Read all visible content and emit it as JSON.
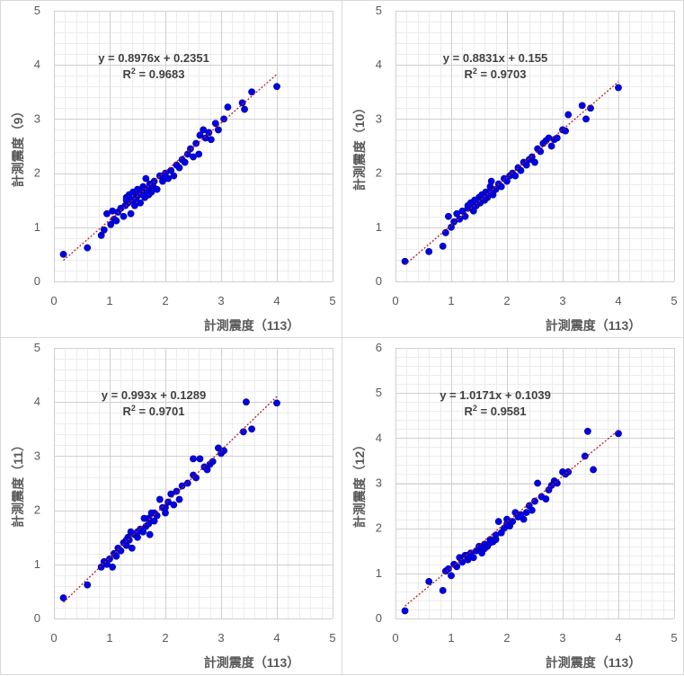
{
  "chart_data": [
    {
      "type": "scatter",
      "xlabel": "計測震度（113）",
      "ylabel": "計測震度（9）",
      "xlim": [
        0,
        5
      ],
      "ylim": [
        0,
        5
      ],
      "xticks": [
        "0",
        "1",
        "2",
        "3",
        "4",
        "5"
      ],
      "yticks": [
        "0",
        "1",
        "2",
        "3",
        "4",
        "5"
      ],
      "equation": "y = 0.8976x + 0.2351",
      "r2_prefix": "R",
      "r2_sup": "2",
      "r2_value": " = 0.9683",
      "trendline": {
        "slope": 0.8976,
        "intercept": 0.2351,
        "x_range": [
          0.17,
          4.0
        ]
      },
      "points": [
        [
          0.17,
          0.5
        ],
        [
          0.6,
          0.62
        ],
        [
          0.85,
          0.85
        ],
        [
          0.9,
          0.95
        ],
        [
          0.95,
          1.25
        ],
        [
          1.02,
          1.05
        ],
        [
          1.05,
          1.3
        ],
        [
          1.08,
          1.15
        ],
        [
          1.12,
          1.12
        ],
        [
          1.15,
          1.28
        ],
        [
          1.2,
          1.35
        ],
        [
          1.25,
          1.2
        ],
        [
          1.28,
          1.4
        ],
        [
          1.3,
          1.55
        ],
        [
          1.33,
          1.45
        ],
        [
          1.35,
          1.6
        ],
        [
          1.38,
          1.25
        ],
        [
          1.4,
          1.5
        ],
        [
          1.42,
          1.65
        ],
        [
          1.45,
          1.4
        ],
        [
          1.48,
          1.55
        ],
        [
          1.5,
          1.7
        ],
        [
          1.52,
          1.6
        ],
        [
          1.55,
          1.45
        ],
        [
          1.58,
          1.65
        ],
        [
          1.6,
          1.75
        ],
        [
          1.63,
          1.55
        ],
        [
          1.65,
          1.9
        ],
        [
          1.68,
          1.7
        ],
        [
          1.7,
          1.6
        ],
        [
          1.72,
          1.8
        ],
        [
          1.75,
          1.65
        ],
        [
          1.78,
          1.75
        ],
        [
          1.8,
          1.85
        ],
        [
          1.85,
          1.7
        ],
        [
          1.9,
          1.95
        ],
        [
          1.95,
          1.85
        ],
        [
          2.0,
          2.0
        ],
        [
          2.05,
          1.9
        ],
        [
          2.1,
          2.05
        ],
        [
          2.15,
          1.95
        ],
        [
          2.2,
          2.15
        ],
        [
          2.25,
          2.1
        ],
        [
          2.3,
          2.25
        ],
        [
          2.35,
          2.2
        ],
        [
          2.4,
          2.35
        ],
        [
          2.45,
          2.45
        ],
        [
          2.5,
          2.3
        ],
        [
          2.55,
          2.55
        ],
        [
          2.6,
          2.35
        ],
        [
          2.62,
          2.7
        ],
        [
          2.68,
          2.8
        ],
        [
          2.72,
          2.65
        ],
        [
          2.78,
          2.75
        ],
        [
          2.82,
          2.62
        ],
        [
          2.9,
          2.92
        ],
        [
          2.95,
          2.8
        ],
        [
          3.05,
          3.0
        ],
        [
          3.12,
          3.22
        ],
        [
          3.38,
          3.3
        ],
        [
          3.42,
          3.18
        ],
        [
          3.55,
          3.5
        ],
        [
          4.0,
          3.6
        ],
        [
          1.3,
          1.5
        ],
        [
          1.6,
          1.6
        ],
        [
          2.0,
          1.95
        ],
        [
          1.45,
          1.52
        ],
        [
          1.75,
          1.78
        ]
      ]
    },
    {
      "type": "scatter",
      "xlabel": "計測震度（113）",
      "ylabel": "計測震度（10）",
      "xlim": [
        0,
        5
      ],
      "ylim": [
        0,
        5
      ],
      "xticks": [
        "0",
        "1",
        "2",
        "3",
        "4",
        "5"
      ],
      "yticks": [
        "0",
        "1",
        "2",
        "3",
        "4",
        "5"
      ],
      "equation": "y = 0.8831x + 0.155",
      "r2_prefix": "R",
      "r2_sup": "2",
      "r2_value": " = 0.9703",
      "trendline": {
        "slope": 0.8831,
        "intercept": 0.155,
        "x_range": [
          0.17,
          4.0
        ]
      },
      "points": [
        [
          0.17,
          0.37
        ],
        [
          0.6,
          0.55
        ],
        [
          0.85,
          0.65
        ],
        [
          0.9,
          0.9
        ],
        [
          0.95,
          1.2
        ],
        [
          1.0,
          1.0
        ],
        [
          1.05,
          1.1
        ],
        [
          1.1,
          1.25
        ],
        [
          1.15,
          1.15
        ],
        [
          1.2,
          1.3
        ],
        [
          1.25,
          1.2
        ],
        [
          1.3,
          1.35
        ],
        [
          1.35,
          1.45
        ],
        [
          1.4,
          1.3
        ],
        [
          1.42,
          1.5
        ],
        [
          1.45,
          1.4
        ],
        [
          1.5,
          1.55
        ],
        [
          1.52,
          1.45
        ],
        [
          1.55,
          1.6
        ],
        [
          1.6,
          1.5
        ],
        [
          1.62,
          1.65
        ],
        [
          1.65,
          1.55
        ],
        [
          1.7,
          1.75
        ],
        [
          1.72,
          1.85
        ],
        [
          1.75,
          1.6
        ],
        [
          1.8,
          1.7
        ],
        [
          1.85,
          1.8
        ],
        [
          1.9,
          1.75
        ],
        [
          1.95,
          1.9
        ],
        [
          2.0,
          1.85
        ],
        [
          2.05,
          1.95
        ],
        [
          2.1,
          2.0
        ],
        [
          2.15,
          1.95
        ],
        [
          2.2,
          2.1
        ],
        [
          2.25,
          2.05
        ],
        [
          2.3,
          2.2
        ],
        [
          2.35,
          2.15
        ],
        [
          2.4,
          2.25
        ],
        [
          2.45,
          2.3
        ],
        [
          2.5,
          2.2
        ],
        [
          2.55,
          2.45
        ],
        [
          2.6,
          2.4
        ],
        [
          2.65,
          2.55
        ],
        [
          2.7,
          2.6
        ],
        [
          2.75,
          2.65
        ],
        [
          2.8,
          2.5
        ],
        [
          2.85,
          2.62
        ],
        [
          2.9,
          2.65
        ],
        [
          3.0,
          2.8
        ],
        [
          3.05,
          2.78
        ],
        [
          3.1,
          3.08
        ],
        [
          3.35,
          3.25
        ],
        [
          3.42,
          3.0
        ],
        [
          3.5,
          3.2
        ],
        [
          4.0,
          3.58
        ],
        [
          1.3,
          1.4
        ],
        [
          1.6,
          1.55
        ],
        [
          1.5,
          1.48
        ],
        [
          1.4,
          1.35
        ],
        [
          1.7,
          1.65
        ]
      ]
    },
    {
      "type": "scatter",
      "xlabel": "計測震度（113）",
      "ylabel": "計測震度（11）",
      "xlim": [
        0,
        5
      ],
      "ylim": [
        0,
        5
      ],
      "xticks": [
        "0",
        "1",
        "2",
        "3",
        "4",
        "5"
      ],
      "yticks": [
        "0",
        "1",
        "2",
        "3",
        "4",
        "5"
      ],
      "equation": "y = 0.993x + 0.1289",
      "r2_prefix": "R",
      "r2_sup": "2",
      "r2_value": " = 0.9701",
      "trendline": {
        "slope": 0.993,
        "intercept": 0.1289,
        "x_range": [
          0.17,
          4.0
        ]
      },
      "points": [
        [
          0.17,
          0.38
        ],
        [
          0.6,
          0.62
        ],
        [
          0.85,
          0.95
        ],
        [
          0.9,
          1.05
        ],
        [
          0.95,
          1.0
        ],
        [
          1.0,
          1.1
        ],
        [
          1.05,
          0.95
        ],
        [
          1.08,
          1.2
        ],
        [
          1.12,
          1.15
        ],
        [
          1.15,
          1.3
        ],
        [
          1.2,
          1.25
        ],
        [
          1.25,
          1.4
        ],
        [
          1.3,
          1.35
        ],
        [
          1.33,
          1.5
        ],
        [
          1.35,
          1.45
        ],
        [
          1.38,
          1.6
        ],
        [
          1.4,
          1.3
        ],
        [
          1.45,
          1.55
        ],
        [
          1.5,
          1.5
        ],
        [
          1.55,
          1.65
        ],
        [
          1.6,
          1.6
        ],
        [
          1.62,
          1.85
        ],
        [
          1.65,
          1.7
        ],
        [
          1.7,
          1.75
        ],
        [
          1.72,
          1.55
        ],
        [
          1.75,
          1.95
        ],
        [
          1.8,
          1.8
        ],
        [
          1.85,
          1.9
        ],
        [
          1.9,
          2.2
        ],
        [
          1.95,
          2.05
        ],
        [
          2.0,
          1.95
        ],
        [
          2.05,
          2.15
        ],
        [
          2.1,
          2.3
        ],
        [
          2.15,
          2.1
        ],
        [
          2.2,
          2.35
        ],
        [
          2.25,
          2.2
        ],
        [
          2.3,
          2.45
        ],
        [
          2.4,
          2.5
        ],
        [
          2.5,
          2.65
        ],
        [
          2.55,
          2.6
        ],
        [
          2.62,
          2.95
        ],
        [
          2.7,
          2.8
        ],
        [
          2.75,
          2.75
        ],
        [
          2.8,
          2.85
        ],
        [
          2.85,
          2.9
        ],
        [
          2.95,
          3.15
        ],
        [
          3.0,
          3.05
        ],
        [
          3.05,
          3.1
        ],
        [
          3.4,
          3.45
        ],
        [
          3.45,
          4.0
        ],
        [
          3.55,
          3.5
        ],
        [
          4.0,
          3.98
        ],
        [
          2.5,
          2.95
        ],
        [
          1.5,
          1.6
        ],
        [
          1.3,
          1.45
        ],
        [
          1.7,
          1.85
        ],
        [
          2.0,
          2.05
        ],
        [
          1.8,
          1.95
        ]
      ]
    },
    {
      "type": "scatter",
      "xlabel": "計測震度（113）",
      "ylabel": "計測震度（12）",
      "xlim": [
        0,
        5
      ],
      "ylim": [
        0,
        6
      ],
      "xticks": [
        "0",
        "1",
        "2",
        "3",
        "4",
        "5"
      ],
      "yticks": [
        "0",
        "1",
        "2",
        "3",
        "4",
        "5",
        "6"
      ],
      "equation": "y = 1.0171x + 0.1039",
      "r2_prefix": "R",
      "r2_sup": "2",
      "r2_value": " = 0.9581",
      "trendline": {
        "slope": 1.0171,
        "intercept": 0.1039,
        "x_range": [
          0.17,
          4.0
        ]
      },
      "points": [
        [
          0.17,
          0.17
        ],
        [
          0.6,
          0.82
        ],
        [
          0.85,
          0.62
        ],
        [
          0.9,
          1.05
        ],
        [
          0.95,
          1.1
        ],
        [
          1.0,
          0.95
        ],
        [
          1.05,
          1.2
        ],
        [
          1.1,
          1.15
        ],
        [
          1.15,
          1.35
        ],
        [
          1.2,
          1.25
        ],
        [
          1.25,
          1.4
        ],
        [
          1.3,
          1.3
        ],
        [
          1.35,
          1.45
        ],
        [
          1.4,
          1.35
        ],
        [
          1.45,
          1.5
        ],
        [
          1.5,
          1.55
        ],
        [
          1.55,
          1.45
        ],
        [
          1.6,
          1.65
        ],
        [
          1.65,
          1.6
        ],
        [
          1.7,
          1.75
        ],
        [
          1.75,
          1.7
        ],
        [
          1.8,
          1.85
        ],
        [
          1.85,
          2.15
        ],
        [
          1.9,
          1.9
        ],
        [
          1.95,
          2.0
        ],
        [
          2.0,
          2.2
        ],
        [
          2.05,
          2.05
        ],
        [
          2.1,
          2.15
        ],
        [
          2.15,
          2.35
        ],
        [
          2.2,
          2.25
        ],
        [
          2.25,
          2.3
        ],
        [
          2.3,
          2.2
        ],
        [
          2.35,
          2.35
        ],
        [
          2.4,
          2.5
        ],
        [
          2.45,
          2.4
        ],
        [
          2.5,
          2.6
        ],
        [
          2.55,
          3.0
        ],
        [
          2.62,
          2.7
        ],
        [
          2.7,
          2.65
        ],
        [
          2.75,
          2.85
        ],
        [
          2.8,
          2.95
        ],
        [
          2.85,
          3.05
        ],
        [
          2.9,
          3.0
        ],
        [
          3.0,
          3.25
        ],
        [
          3.05,
          3.2
        ],
        [
          3.1,
          3.25
        ],
        [
          3.4,
          3.6
        ],
        [
          3.45,
          4.15
        ],
        [
          3.55,
          3.3
        ],
        [
          4.0,
          4.1
        ],
        [
          1.5,
          1.6
        ],
        [
          1.6,
          1.55
        ],
        [
          1.3,
          1.4
        ],
        [
          2.0,
          2.1
        ],
        [
          1.8,
          1.75
        ],
        [
          1.7,
          1.68
        ]
      ]
    }
  ]
}
